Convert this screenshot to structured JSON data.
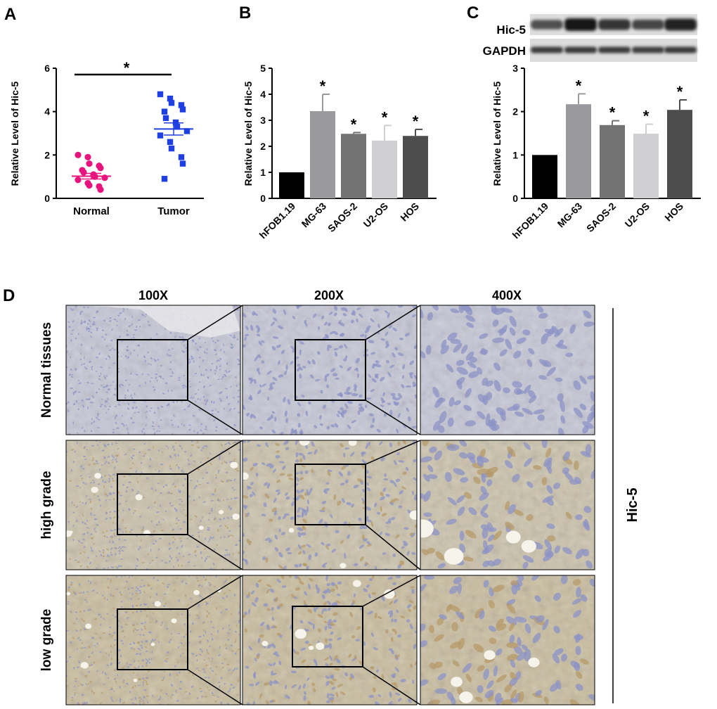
{
  "panels": {
    "a": "A",
    "b": "B",
    "c": "C",
    "d": "D"
  },
  "colors": {
    "normal_dots": "#e8147e",
    "tumor_squares": "#1f3fe0",
    "bars": [
      "#000000",
      "#9a9a9e",
      "#737373",
      "#cfcfd1",
      "#4d4d4d"
    ],
    "tissue_blue": "#8c93c6",
    "tissue_brown": "#b79a6a"
  },
  "chart_data": [
    {
      "id": "A",
      "type": "scatter",
      "title": "",
      "xlabel": "",
      "ylabel": "Relative Level  of Hic-5",
      "ylim": [
        0,
        6
      ],
      "yticks": [
        "0",
        "2",
        "4",
        "6"
      ],
      "categories": [
        "Normal",
        "Tumor"
      ],
      "series": [
        {
          "category": "Normal",
          "marker": "circle",
          "values": [
            2.0,
            1.9,
            1.6,
            1.5,
            1.4,
            1.3,
            1.2,
            1.1,
            1.0,
            0.95,
            0.85,
            0.7,
            0.6,
            0.55,
            0.4
          ],
          "mean": 1.02,
          "sem": 0.13
        },
        {
          "category": "Tumor",
          "marker": "square",
          "values": [
            4.8,
            4.6,
            4.4,
            4.3,
            4.1,
            4.0,
            3.7,
            3.5,
            3.3,
            3.1,
            2.9,
            2.6,
            2.3,
            1.9,
            1.6,
            0.9
          ],
          "mean": 3.2,
          "sem": 0.28
        }
      ],
      "significance": "*"
    },
    {
      "id": "B",
      "type": "bar",
      "xlabel": "",
      "ylabel": "Relative Level  of Hic-5",
      "ylim": [
        0,
        5
      ],
      "yticks": [
        "0",
        "1",
        "2",
        "3",
        "4",
        "5"
      ],
      "categories": [
        "hFOB1.19",
        "MG-63",
        "SAOS-2",
        "U2-OS",
        "HOS"
      ],
      "values": [
        1.0,
        3.35,
        2.48,
        2.22,
        2.4
      ],
      "errors": [
        0,
        0.65,
        0.05,
        0.58,
        0.25
      ],
      "significance": [
        "",
        "*",
        "*",
        "*",
        "*"
      ]
    },
    {
      "id": "C",
      "type": "bar",
      "xlabel": "",
      "ylabel": "Relative Level  of Hic-5",
      "ylim": [
        0,
        3
      ],
      "yticks": [
        "0",
        "1",
        "2",
        "3"
      ],
      "categories": [
        "hFOB1.19",
        "MG-63",
        "SAOS-2",
        "U2-OS",
        "HOS"
      ],
      "values": [
        1.0,
        2.17,
        1.69,
        1.49,
        2.04
      ],
      "errors": [
        0,
        0.24,
        0.1,
        0.22,
        0.23
      ],
      "significance": [
        "",
        "*",
        "*",
        "*",
        "*"
      ],
      "blot_labels": [
        "Hic-5",
        "GAPDH"
      ],
      "blot_intensity": {
        "Hic-5": [
          0.55,
          1.0,
          0.75,
          0.62,
          0.9
        ],
        "GAPDH": [
          0.7,
          0.72,
          0.7,
          0.68,
          0.72
        ]
      }
    }
  ],
  "histology": {
    "magnifications": [
      "100X",
      "200X",
      "400X"
    ],
    "rows": [
      "Normal tissues",
      "high grade",
      "low grade"
    ],
    "stain_label": "Hic-5"
  }
}
